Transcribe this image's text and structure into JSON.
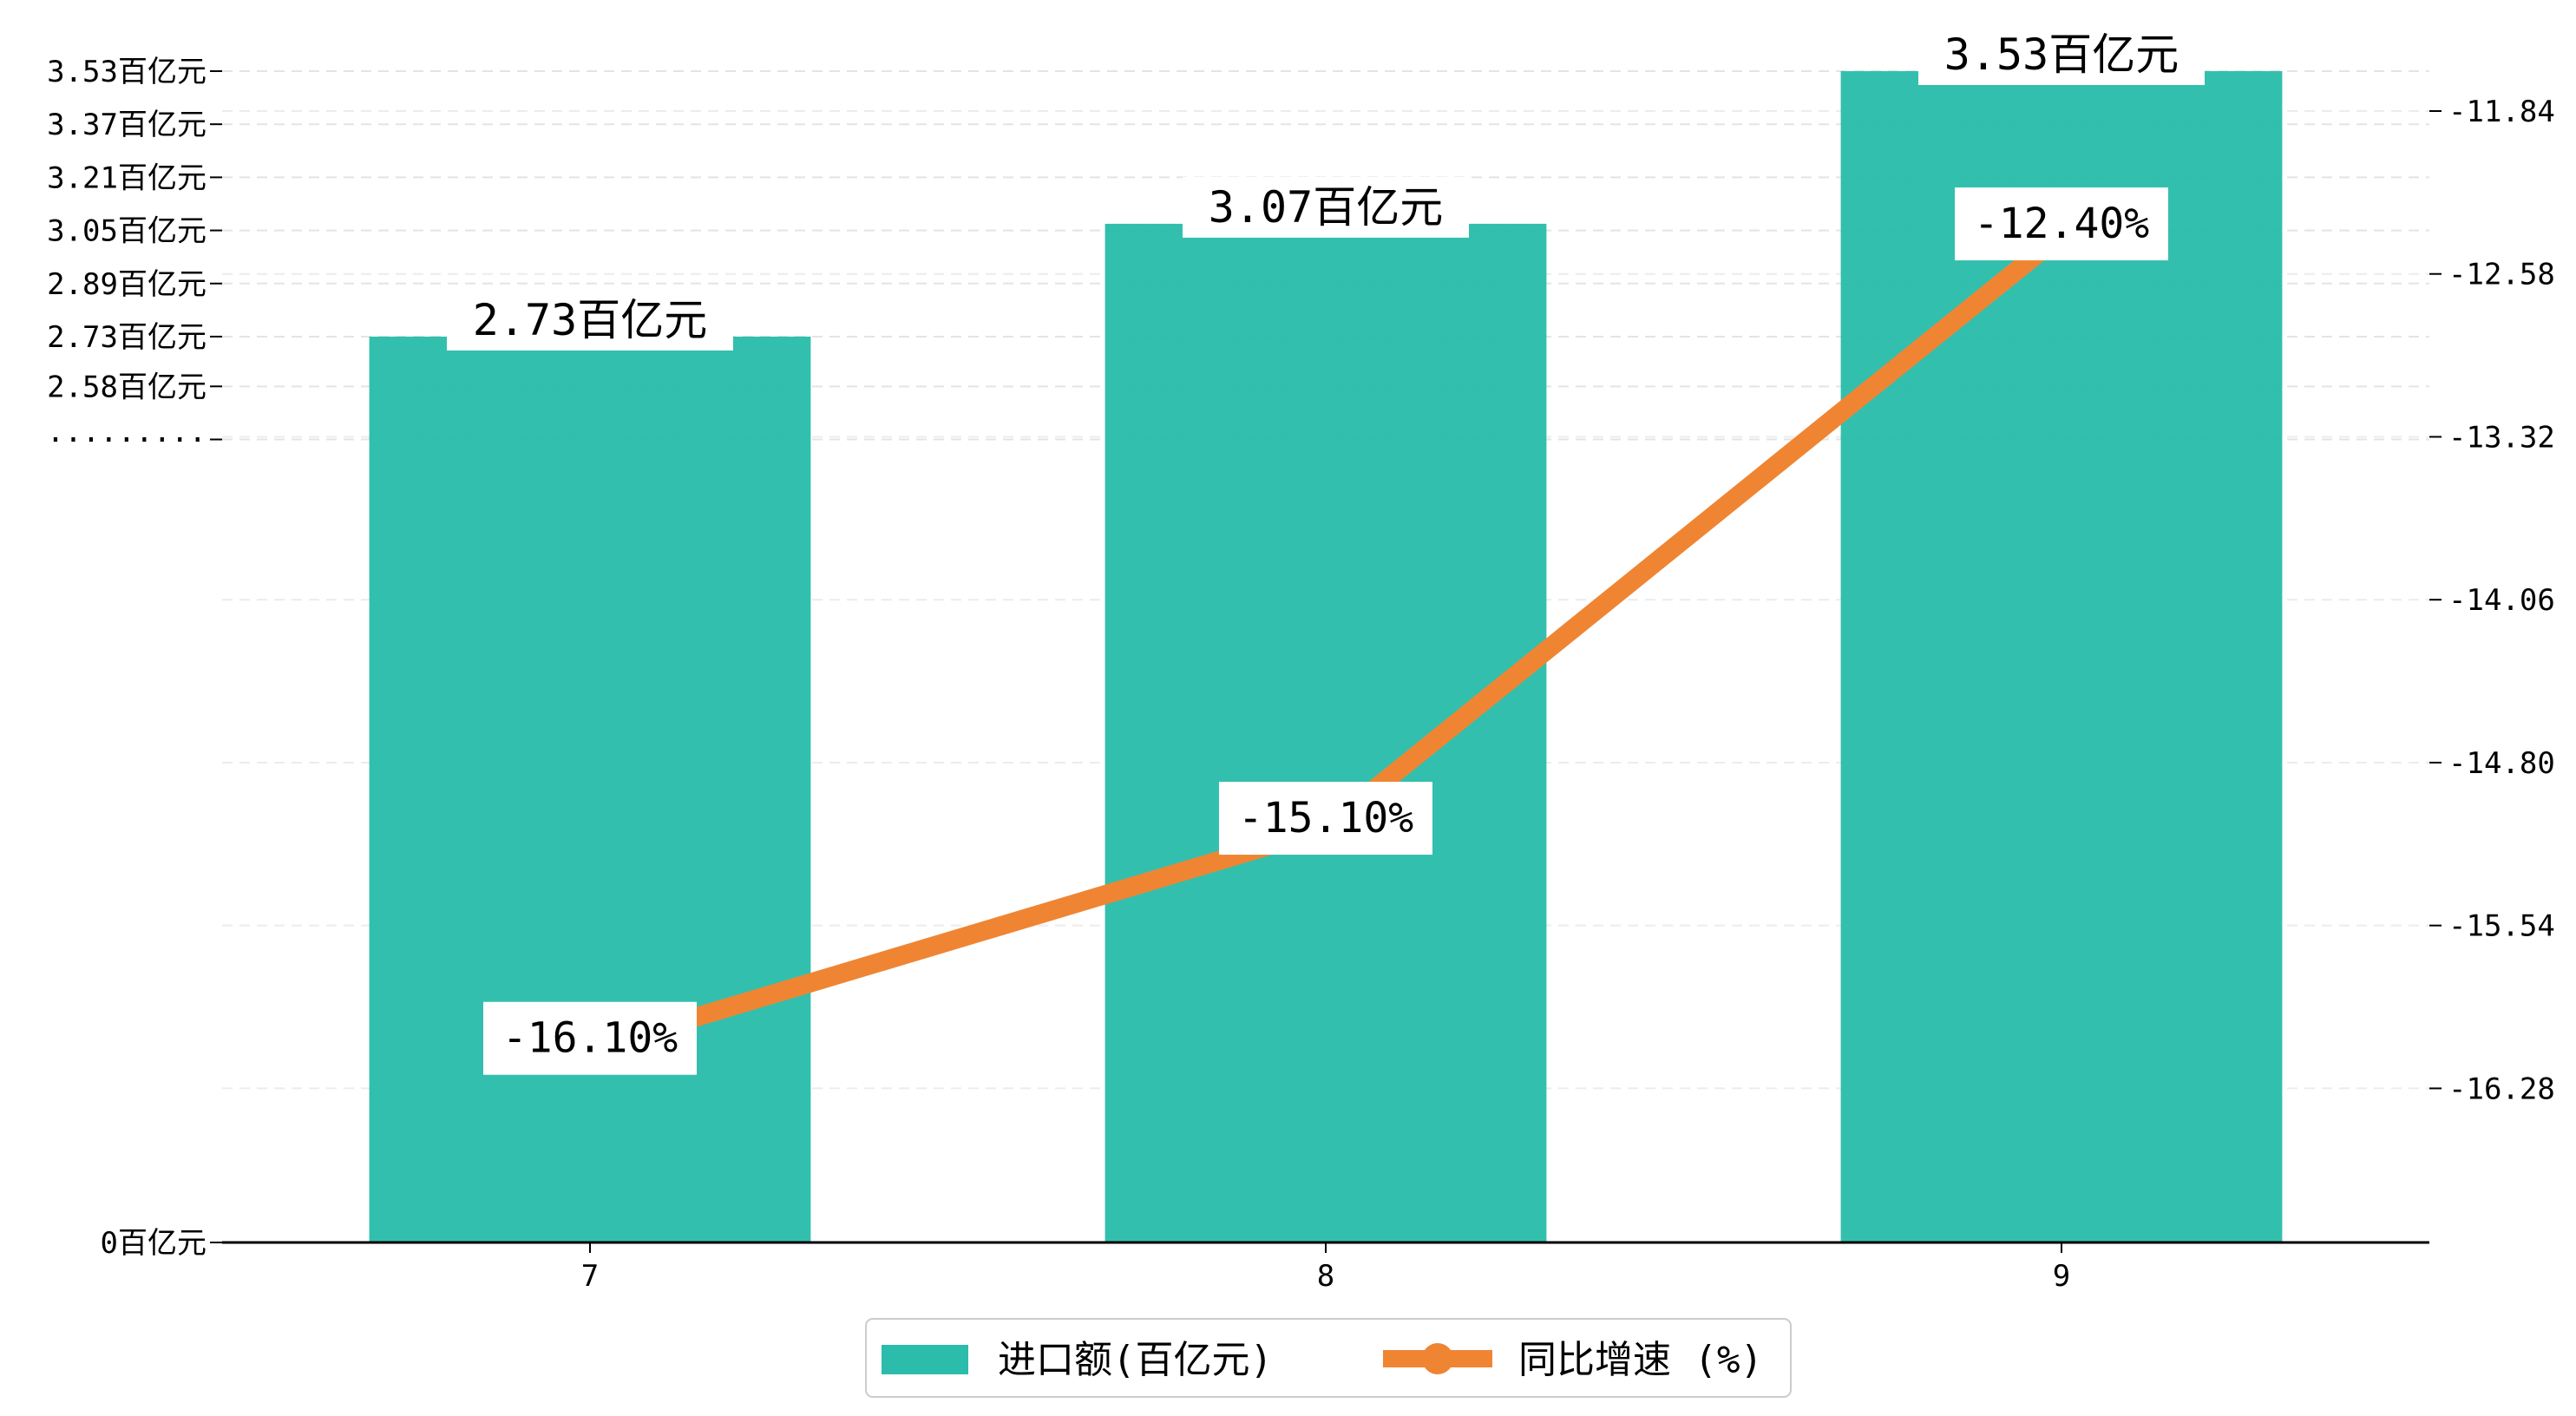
{
  "chart_data": {
    "type": "bar",
    "categories": [
      "7",
      "8",
      "9"
    ],
    "series": [
      {
        "name": "进口额(百亿元)",
        "kind": "bar",
        "axis": "left",
        "values": [
          2.73,
          3.07,
          3.53
        ],
        "labels": [
          "2.73百亿元",
          "3.07百亿元",
          "3.53百亿元"
        ],
        "color": "#2bbcab"
      },
      {
        "name": "同比增速 (%)",
        "kind": "line",
        "axis": "right",
        "values": [
          -16.1,
          -15.1,
          -12.4
        ],
        "labels": [
          "-16.10%",
          "-15.10%",
          "-12.40%"
        ],
        "color": "#ef8533"
      }
    ],
    "y_left": {
      "tick_values": [
        0,
        2.42,
        2.58,
        2.73,
        2.89,
        3.05,
        3.21,
        3.37,
        3.53
      ],
      "tick_labels": [
        "0百亿元",
        "·········",
        "2.58百亿元",
        "2.73百亿元",
        "2.89百亿元",
        "3.05百亿元",
        "3.21百亿元",
        "3.37百亿元",
        "3.53百亿元"
      ]
    },
    "y_right": {
      "ylim": [
        -16.98,
        -11.84
      ],
      "tick_values": [
        -16.28,
        -15.54,
        -14.8,
        -14.06,
        -13.32,
        -12.58,
        -11.84
      ],
      "tick_labels": [
        "-16.28",
        "-15.54",
        "-14.80",
        "-14.06",
        "-13.32",
        "-12.58",
        "-11.84"
      ]
    },
    "grid": true,
    "legend": {
      "position": "bottom-center"
    }
  }
}
